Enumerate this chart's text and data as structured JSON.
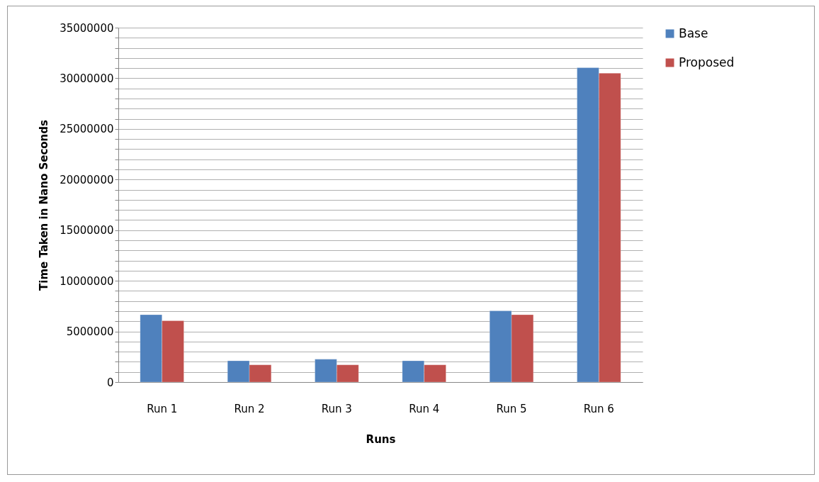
{
  "chart_data": {
    "type": "bar",
    "xlabel": "Runs",
    "ylabel": "Time Taken  in Nano Seconds",
    "categories": [
      "Run 1",
      "Run 2",
      "Run 3",
      "Run 4",
      "Run 5",
      "Run 6"
    ],
    "series": [
      {
        "name": "Base",
        "color": "#4f81bd",
        "values": [
          6650000,
          2100000,
          2250000,
          2100000,
          7030000,
          31050000
        ]
      },
      {
        "name": "Proposed",
        "color": "#c0504d",
        "values": [
          6060000,
          1700000,
          1700000,
          1700000,
          6650000,
          30500000
        ]
      }
    ],
    "ylim": [
      0,
      35000000
    ],
    "yticks": [
      0,
      {
        "value": 1000000,
        "label": null
      },
      {
        "value": 2000000,
        "label": null
      },
      {
        "value": 3000000,
        "label": null
      },
      {
        "value": 4000000,
        "label": null
      },
      5000000,
      {
        "value": 6000000,
        "label": null
      },
      {
        "value": 7000000,
        "label": null
      },
      {
        "value": 8000000,
        "label": null
      },
      {
        "value": 9000000,
        "label": null
      },
      10000000,
      {
        "value": 11000000,
        "label": null
      },
      {
        "value": 12000000,
        "label": null
      },
      {
        "value": 13000000,
        "label": null
      },
      {
        "value": 14000000,
        "label": null
      },
      15000000,
      {
        "value": 16000000,
        "label": null
      },
      {
        "value": 17000000,
        "label": null
      },
      {
        "value": 18000000,
        "label": null
      },
      {
        "value": 19000000,
        "label": null
      },
      20000000,
      {
        "value": 21000000,
        "label": null
      },
      {
        "value": 22000000,
        "label": null
      },
      {
        "value": 23000000,
        "label": null
      },
      {
        "value": 24000000,
        "label": null
      },
      25000000,
      {
        "value": 26000000,
        "label": null
      },
      {
        "value": 27000000,
        "label": null
      },
      {
        "value": 28000000,
        "label": null
      },
      {
        "value": 29000000,
        "label": null
      },
      30000000,
      {
        "value": 31000000,
        "label": null
      },
      {
        "value": 32000000,
        "label": null
      },
      {
        "value": 33000000,
        "label": null
      },
      {
        "value": 34000000,
        "label": null
      },
      35000000
    ],
    "grid": true,
    "legend": "right"
  }
}
